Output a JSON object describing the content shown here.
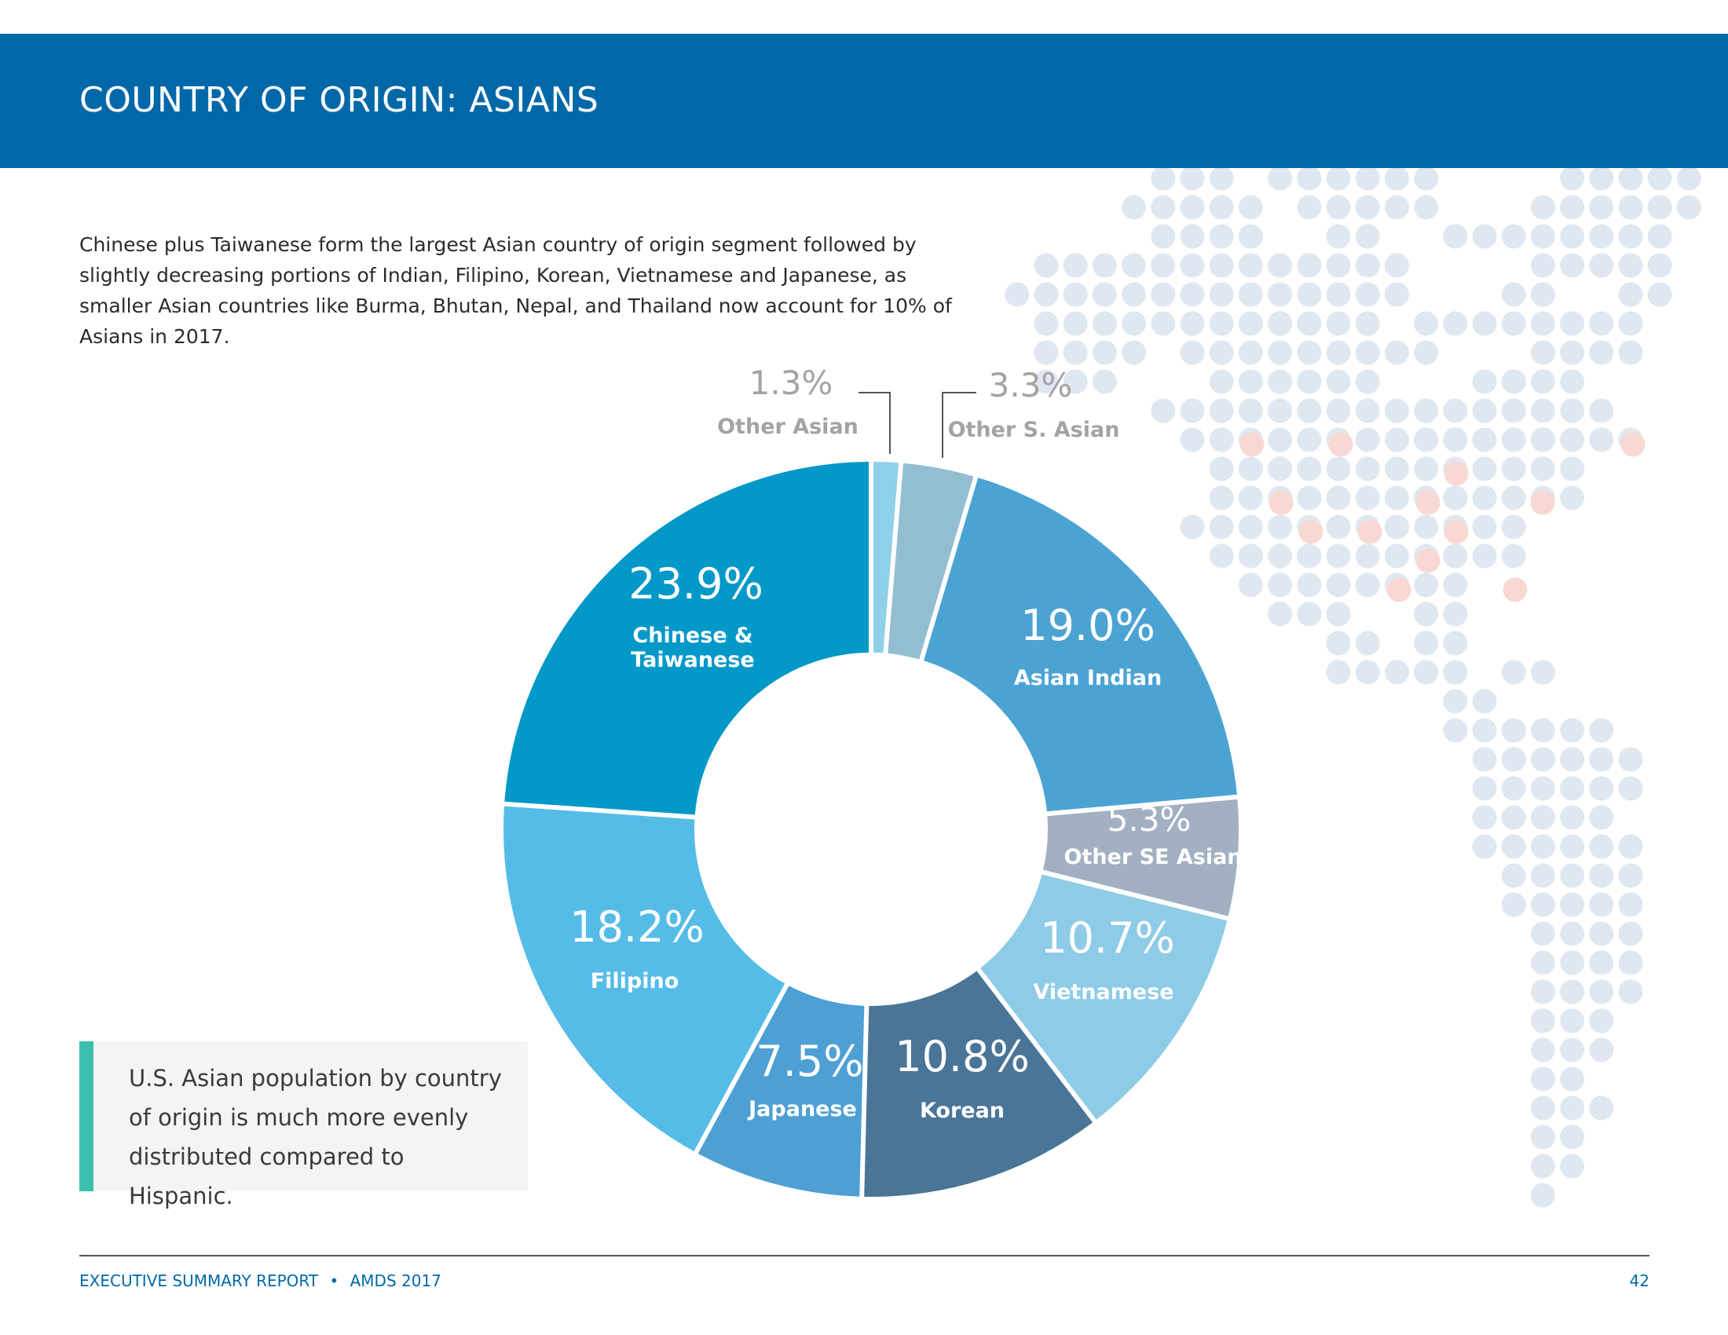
{
  "page": {
    "title": "COUNTRY OF ORIGIN: ASIANS",
    "intro": "Chinese plus Taiwanese form the largest Asian country of origin segment followed by slightly decreasing portions of Indian, Filipino, Korean, Vietnamese and Japanese, as smaller Asian countries like Burma, Bhutan, Nepal, and Thailand now account for 10% of Asians in 2017.",
    "callout": "U.S. Asian population by country of origin is much more evenly distributed compared to Hispanic.",
    "footer": {
      "report": "EXECUTIVE SUMMARY REPORT",
      "separator": "•",
      "edition": "AMDS 2017",
      "page_number": "42"
    }
  },
  "colors": {
    "header": "#0068a8",
    "callout_accent": "#3dbfad",
    "map_dot": "#dfe7f1",
    "map_dot_highlight": "#f8d8d2"
  },
  "chart_data": {
    "type": "pie",
    "style": "donut",
    "title": "",
    "series": [
      {
        "name": "Other Asian",
        "value_label": "1.3%",
        "value": 1.3,
        "color": "#8fd0ea",
        "label_style": "outside"
      },
      {
        "name": "Other S. Asian",
        "value_label": "3.3%",
        "value": 3.3,
        "color": "#93bed2",
        "label_style": "outside"
      },
      {
        "name": "Asian Indian",
        "value_label": "19.0%",
        "value": 19.0,
        "color": "#4ba3d4",
        "label_style": "inside"
      },
      {
        "name": "Other SE Asian",
        "value_label": "5.3%",
        "value": 5.3,
        "color": "#a2b0c2",
        "label_style": "inside"
      },
      {
        "name": "Vietnamese",
        "value_label": "10.7%",
        "value": 10.7,
        "color": "#8ecbe7",
        "label_style": "inside"
      },
      {
        "name": "Korean",
        "value_label": "10.8%",
        "value": 10.8,
        "color": "#4a7597",
        "label_style": "inside"
      },
      {
        "name": "Japanese",
        "value_label": "7.5%",
        "value": 7.5,
        "color": "#4ea0d4",
        "label_style": "inside"
      },
      {
        "name": "Filipino",
        "value_label": "18.2%",
        "value": 18.2,
        "color": "#55bce8",
        "label_style": "inside"
      },
      {
        "name": "Chinese &\nTaiwanese",
        "value_label": "23.9%",
        "value": 23.9,
        "color": "#0298c8",
        "label_style": "inside"
      }
    ]
  }
}
